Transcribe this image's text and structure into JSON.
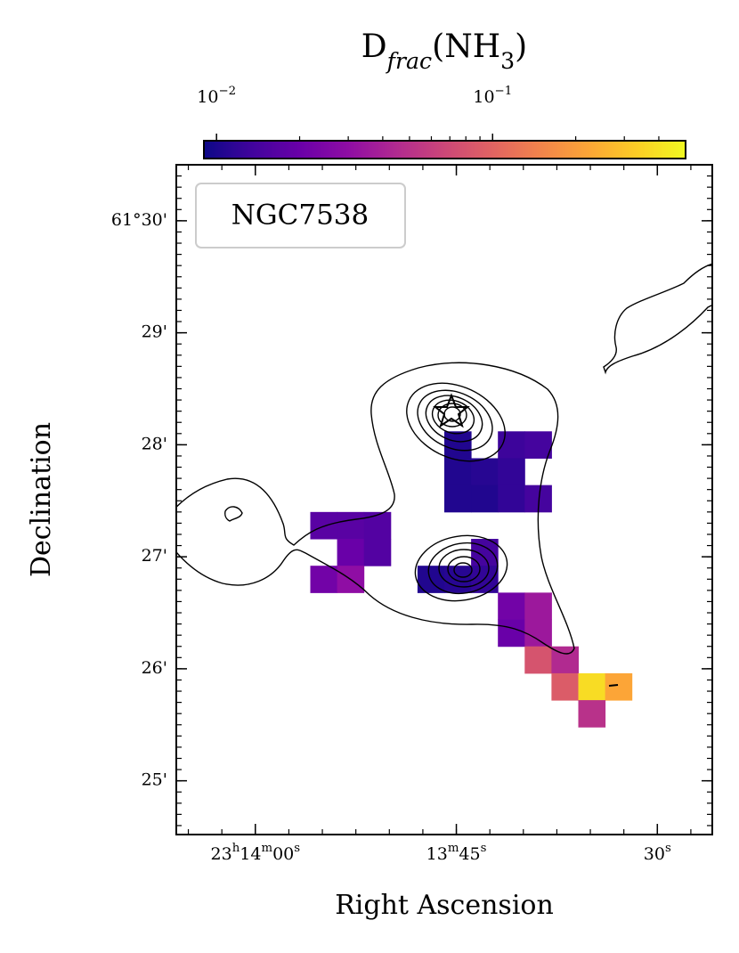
{
  "chart_data": {
    "type": "heatmap",
    "title": [
      {
        "text": "D"
      },
      {
        "text": "frac",
        "sub": true
      },
      {
        "text": "(NH"
      },
      {
        "text": "3",
        "sub": true
      },
      {
        "text": ")"
      }
    ],
    "xlabel": "Right Ascension",
    "ylabel": "Declination",
    "annotation": "NGC7538",
    "colormap": "plasma",
    "log_color": true,
    "clim": [
      0.009,
      0.5
    ],
    "cticks": [
      {
        "value": 0.01,
        "label": [
          {
            "text": "10"
          },
          {
            "text": "−2",
            "sup": true
          }
        ]
      },
      {
        "value": 0.1,
        "label": [
          {
            "text": "10"
          },
          {
            "text": "−1",
            "sup": true
          }
        ]
      }
    ],
    "cminor_ticks": [
      0.02,
      0.03,
      0.04,
      0.05,
      0.06,
      0.07,
      0.08,
      0.09,
      0.2,
      0.3,
      0.4
    ],
    "xlim": [
      65.9,
      25.9
    ],
    "ylim": [
      24.52,
      30.5
    ],
    "xticks": [
      {
        "value": 60,
        "label": [
          {
            "text": "23"
          },
          {
            "text": "h",
            "sup": true
          },
          {
            "text": "14"
          },
          {
            "text": "m",
            "sup": true
          },
          {
            "text": "00"
          },
          {
            "text": "s",
            "sup": true
          }
        ]
      },
      {
        "value": 45,
        "label": [
          {
            "text": "13"
          },
          {
            "text": "m",
            "sup": true
          },
          {
            "text": "45"
          },
          {
            "text": "s",
            "sup": true
          }
        ]
      },
      {
        "value": 30,
        "label": [
          {
            "text": "30"
          },
          {
            "text": "s",
            "sup": true
          }
        ]
      }
    ],
    "yticks": [
      {
        "value": 30,
        "label": "61°30'"
      },
      {
        "value": 29,
        "label": "29'"
      },
      {
        "value": 28,
        "label": "28'"
      },
      {
        "value": 27,
        "label": "27'"
      },
      {
        "value": 26,
        "label": "26'"
      },
      {
        "value": 25,
        "label": "25'"
      }
    ],
    "xminor_step": 2.5,
    "yminor_step": 0.1,
    "cell_width": 2.0,
    "cell_height": 0.24,
    "x": [
      44.9,
      40.9,
      38.9,
      44.9,
      42.9,
      40.9,
      44.9,
      42.9,
      40.9,
      38.9,
      54.9,
      52.9,
      50.9,
      52.9,
      50.9,
      42.9,
      54.9,
      52.9,
      46.9,
      44.9,
      42.9,
      40.9,
      38.9,
      40.9,
      38.9,
      38.9,
      36.9,
      36.9,
      34.9,
      32.9,
      34.9
    ],
    "y": [
      28.0,
      28.0,
      28.0,
      27.76,
      27.76,
      27.76,
      27.52,
      27.52,
      27.52,
      27.52,
      27.28,
      27.28,
      27.28,
      27.04,
      27.04,
      27.04,
      26.8,
      26.8,
      26.8,
      26.8,
      26.8,
      26.56,
      26.56,
      26.32,
      26.32,
      26.08,
      26.08,
      25.84,
      25.84,
      25.84,
      25.6
    ],
    "values": [
      0.0105,
      0.013,
      0.014,
      0.0105,
      0.011,
      0.012,
      0.0105,
      0.0105,
      0.012,
      0.014,
      0.017,
      0.017,
      0.016,
      0.02,
      0.016,
      0.014,
      0.022,
      0.03,
      0.0105,
      0.011,
      0.012,
      0.022,
      0.035,
      0.02,
      0.035,
      0.08,
      0.045,
      0.09,
      0.38,
      0.22,
      0.05
    ]
  }
}
